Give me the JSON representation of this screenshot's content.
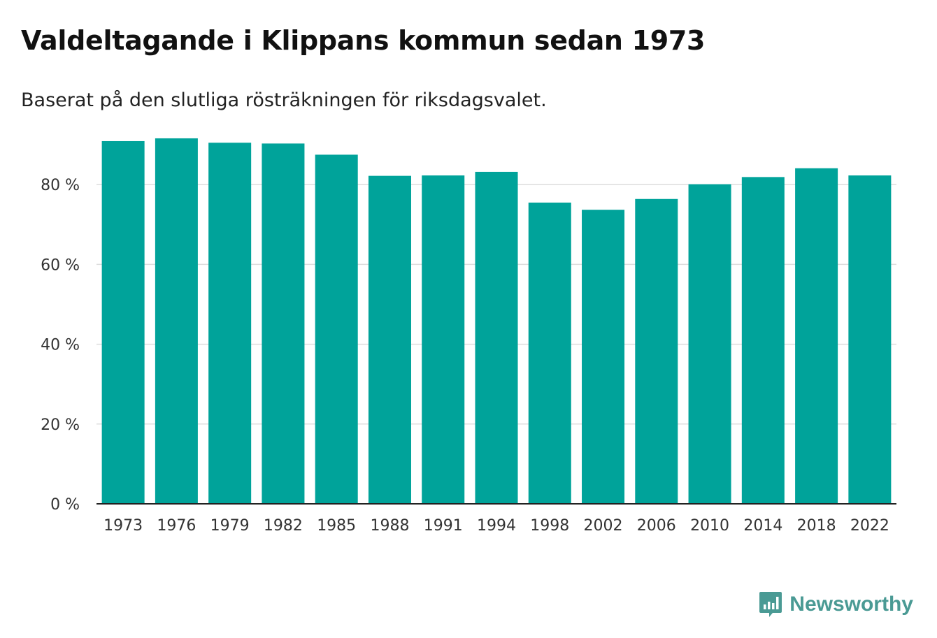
{
  "title": "Valdeltagande i Klippans kommun sedan 1973",
  "subtitle": "Baserat på den slutliga rösträkningen för riksdagsvalet.",
  "brand": "Newsworthy",
  "colors": {
    "bar": "#00a39a",
    "grid": "#dddddd",
    "axis": "#222222",
    "brand": "#4a9a94"
  },
  "chart_data": {
    "type": "bar",
    "title": "Valdeltagande i Klippans kommun sedan 1973",
    "subtitle": "Baserat på den slutliga rösträkningen för riksdagsvalet.",
    "xlabel": "",
    "ylabel": "",
    "categories": [
      "1973",
      "1976",
      "1979",
      "1982",
      "1985",
      "1988",
      "1991",
      "1994",
      "1998",
      "2002",
      "2006",
      "2010",
      "2014",
      "2018",
      "2022"
    ],
    "values": [
      90.9,
      91.6,
      90.5,
      90.3,
      87.5,
      82.2,
      82.3,
      83.2,
      75.5,
      73.7,
      76.4,
      80.1,
      81.9,
      84.1,
      82.3
    ],
    "ylim": [
      0,
      100
    ],
    "yticks": [
      0,
      20,
      40,
      60,
      80
    ],
    "ytick_labels": [
      "0 %",
      "20 %",
      "40 %",
      "60 %",
      "80 %"
    ],
    "grid": true,
    "legend": "none"
  }
}
